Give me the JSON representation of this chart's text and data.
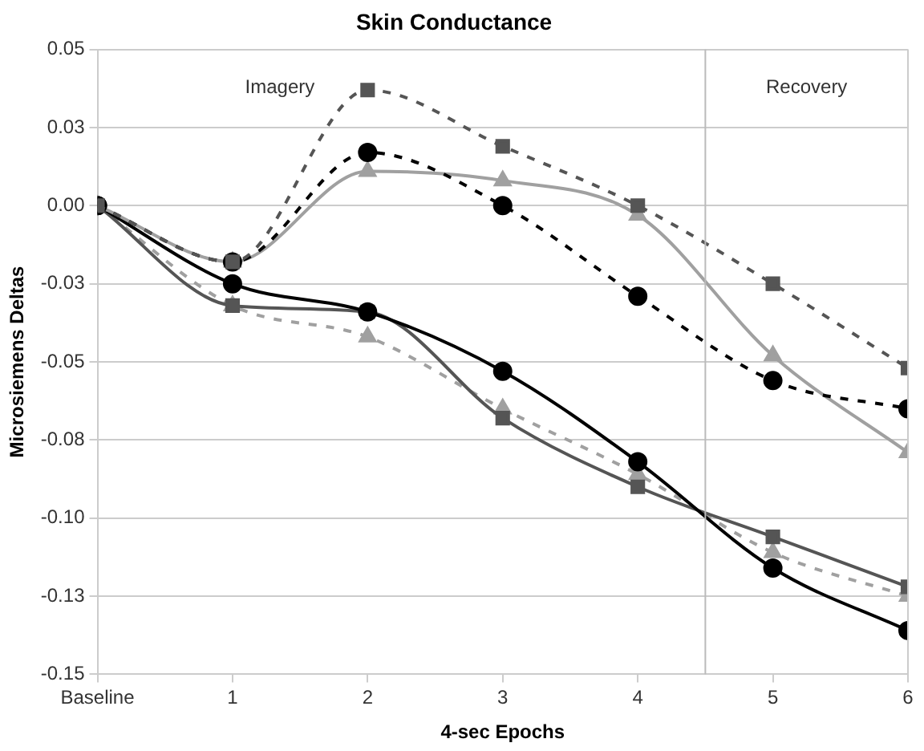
{
  "chart_data": {
    "type": "line",
    "title": "Skin Conductance",
    "xlabel": "4-sec Epochs",
    "ylabel": "Microsiemens Deltas",
    "x": [
      0,
      1,
      2,
      3,
      4,
      5,
      6
    ],
    "xlim": [
      0,
      6
    ],
    "xticks": [
      {
        "value": 0,
        "label": "Baseline"
      },
      1,
      2,
      3,
      4,
      5,
      6
    ],
    "ylim": [
      -0.15,
      0.05
    ],
    "yticks": [
      {
        "value": -0.15,
        "label": "-0.15"
      },
      {
        "value": -0.125,
        "label": "-0.13"
      },
      {
        "value": -0.1,
        "label": "-0.10"
      },
      {
        "value": -0.075,
        "label": "-0.08"
      },
      {
        "value": -0.05,
        "label": "-0.05"
      },
      {
        "value": -0.025,
        "label": "-0.03"
      },
      {
        "value": 0,
        "label": "0.00"
      },
      {
        "value": 0.025,
        "label": "0.03"
      },
      {
        "value": 0.05,
        "label": "0.05"
      }
    ],
    "grid": "y",
    "legend": false,
    "series": [
      {
        "color": "#555555",
        "marker": "square",
        "line_style": "dashed",
        "values": [
          0,
          -0.018,
          0.037,
          0.019,
          0,
          -0.025,
          -0.052
        ]
      },
      {
        "color": "#000000",
        "marker": "circle",
        "line_style": "dashed",
        "values": [
          0,
          -0.018,
          0.017,
          0,
          -0.029,
          -0.056,
          -0.065
        ]
      },
      {
        "color": "#a0a0a0",
        "marker": "triangle",
        "line_style": "solid",
        "values": [
          0,
          -0.018,
          0.011,
          0.008,
          -0.003,
          -0.048,
          -0.079
        ]
      },
      {
        "color": "#000000",
        "marker": "circle",
        "line_style": "solid",
        "values": [
          0,
          -0.025,
          -0.034,
          -0.053,
          -0.082,
          -0.116,
          -0.136
        ]
      },
      {
        "color": "#555555",
        "marker": "square",
        "line_style": "solid",
        "values": [
          0,
          -0.032,
          -0.034,
          -0.068,
          -0.09,
          -0.106,
          -0.122
        ]
      },
      {
        "color": "#a0a0a0",
        "marker": "triangle",
        "line_style": "dashed",
        "values": [
          0,
          -0.032,
          -0.042,
          -0.065,
          -0.086,
          -0.111,
          -0.125
        ]
      }
    ],
    "ref_lines": [
      {
        "axis": "x",
        "value": 4.5,
        "color": "#bbbbbb"
      }
    ],
    "annotations": [
      "Imagery",
      "Recovery"
    ]
  }
}
